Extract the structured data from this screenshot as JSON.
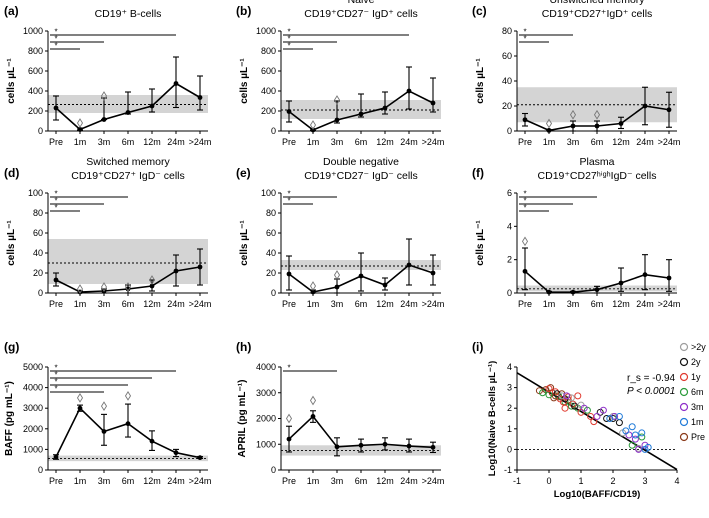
{
  "figure_title": "B-cell subsets, BAFF and APRIL over time",
  "chart_data": [
    {
      "id": "a",
      "label": "(a)",
      "type": "line",
      "title_lines": [
        "CD19⁺ B-cells"
      ],
      "ylabel": "cells µL⁻¹",
      "categories": [
        "Pre",
        "1m",
        "3m",
        "6m",
        "12m",
        "24m",
        ">24m"
      ],
      "ylim": [
        0,
        1000
      ],
      "yticks": [
        0,
        200,
        400,
        600,
        800,
        1000
      ],
      "values": [
        230,
        15,
        115,
        185,
        250,
        475,
        335
      ],
      "err_low": [
        110,
        10,
        115,
        170,
        190,
        235,
        210
      ],
      "err_high": [
        350,
        30,
        330,
        390,
        420,
        740,
        550
      ],
      "ref_band": [
        180,
        360
      ],
      "ref_line": 265,
      "diamonds": [
        {
          "x": "1m",
          "y": 80
        },
        {
          "x": "3m",
          "y": 350
        }
      ],
      "sig_bars": [
        {
          "to": "24m",
          "label": "*"
        },
        {
          "to": "3m",
          "label": "*"
        },
        {
          "to": "1m",
          "label": "*"
        }
      ]
    },
    {
      "id": "b",
      "label": "(b)",
      "type": "line",
      "title_lines": [
        "Naive",
        "CD19⁺CD27⁻ IgD⁺ cells"
      ],
      "ylabel": "cells µL⁻¹",
      "categories": [
        "Pre",
        "1m",
        "3m",
        "6m",
        "12m",
        "24m",
        ">24m"
      ],
      "ylim": [
        0,
        1000
      ],
      "yticks": [
        0,
        200,
        400,
        600,
        800,
        1000
      ],
      "values": [
        195,
        10,
        110,
        170,
        230,
        400,
        280
      ],
      "err_low": [
        90,
        5,
        80,
        140,
        170,
        220,
        190
      ],
      "err_high": [
        300,
        20,
        300,
        370,
        390,
        640,
        530
      ],
      "ref_band": [
        120,
        310
      ],
      "ref_line": 210,
      "diamonds": [
        {
          "x": "1m",
          "y": 60
        },
        {
          "x": "3m",
          "y": 310
        }
      ],
      "sig_bars": [
        {
          "to": "24m",
          "label": "*"
        },
        {
          "to": "3m",
          "label": "*"
        },
        {
          "to": "1m",
          "label": "*"
        }
      ]
    },
    {
      "id": "c",
      "label": "(c)",
      "type": "line",
      "title_lines": [
        "Unswitched memory",
        "CD19⁺CD27⁺IgD⁺ cells"
      ],
      "ylabel": "cells µL⁻¹",
      "categories": [
        "Pre",
        "1m",
        "3m",
        "6m",
        "12m",
        "24m",
        ">24m"
      ],
      "ylim": [
        0,
        80
      ],
      "yticks": [
        0,
        20,
        40,
        60,
        80
      ],
      "values": [
        9,
        0.5,
        4,
        4,
        6,
        20,
        17
      ],
      "err_low": [
        4,
        0,
        0,
        0,
        2,
        5,
        3
      ],
      "err_high": [
        14,
        1,
        8,
        8,
        11,
        35,
        31
      ],
      "ref_band": [
        7,
        35
      ],
      "ref_line": 21,
      "diamonds": [
        {
          "x": "1m",
          "y": 6
        },
        {
          "x": "3m",
          "y": 13
        },
        {
          "x": "6m",
          "y": 13
        }
      ],
      "sig_bars": [
        {
          "to": "3m",
          "label": "*"
        },
        {
          "to": "1m",
          "label": "*"
        }
      ]
    },
    {
      "id": "d",
      "label": "(d)",
      "type": "line",
      "title_lines": [
        "Switched memory",
        "CD19⁺CD27⁺ IgD⁻ cells"
      ],
      "ylabel": "cells µL⁻¹",
      "categories": [
        "Pre",
        "1m",
        "3m",
        "6m",
        "12m",
        "24m",
        ">24m"
      ],
      "ylim": [
        0,
        100
      ],
      "yticks": [
        0,
        20,
        40,
        60,
        80,
        100
      ],
      "values": [
        13,
        1,
        2,
        4,
        7,
        22,
        26
      ],
      "err_low": [
        7,
        0,
        0,
        0,
        2,
        7,
        8
      ],
      "err_high": [
        20,
        2,
        4,
        8,
        13,
        38,
        44
      ],
      "ref_band": [
        9,
        54
      ],
      "ref_line": 30,
      "diamonds": [
        {
          "x": "1m",
          "y": 4
        },
        {
          "x": "3m",
          "y": 6
        },
        {
          "x": "6m",
          "y": 6
        },
        {
          "x": "12m",
          "y": 13
        }
      ],
      "sig_bars": [
        {
          "to": "6m",
          "label": "*"
        },
        {
          "to": "3m",
          "label": "*"
        },
        {
          "to": "1m",
          "label": "*"
        }
      ]
    },
    {
      "id": "e",
      "label": "(e)",
      "type": "line",
      "title_lines": [
        "Double negative",
        "CD19⁺CD27⁻ IgD⁻ cells"
      ],
      "ylabel": "cells µL⁻¹",
      "categories": [
        "Pre",
        "1m",
        "3m",
        "6m",
        "12m",
        "24m",
        ">24m"
      ],
      "ylim": [
        0,
        100
      ],
      "yticks": [
        0,
        20,
        40,
        60,
        80,
        100
      ],
      "values": [
        19,
        1,
        6,
        17,
        8,
        28,
        20
      ],
      "err_low": [
        3,
        0,
        0,
        2,
        3,
        8,
        8
      ],
      "err_high": [
        37,
        3,
        14,
        40,
        15,
        54,
        38
      ],
      "ref_band": [
        23,
        33
      ],
      "ref_line": 27,
      "diamonds": [
        {
          "x": "1m",
          "y": 7
        },
        {
          "x": "3m",
          "y": 18
        }
      ],
      "sig_bars": [
        {
          "to": "3m",
          "label": "*"
        },
        {
          "to": "1m",
          "label": "*"
        }
      ]
    },
    {
      "id": "f",
      "label": "(f)",
      "type": "line",
      "title_lines": [
        "Plasma",
        "CD19⁺CD27ʰⁱᵍʰIgD⁻ cells"
      ],
      "ylabel": "cells µL⁻¹",
      "categories": [
        "Pre",
        "1m",
        "3m",
        "6m",
        "12m",
        "24m",
        ">24m"
      ],
      "ylim": [
        0,
        6
      ],
      "yticks": [
        0,
        2,
        4,
        6
      ],
      "values": [
        1.3,
        0.05,
        0.05,
        0.2,
        0.6,
        1.1,
        0.9
      ],
      "err_low": [
        0.2,
        0,
        0,
        0,
        0.1,
        0.2,
        0.1
      ],
      "err_high": [
        2.7,
        0.1,
        0.1,
        0.4,
        1.5,
        2.3,
        2.0
      ],
      "ref_band": [
        0.1,
        0.45
      ],
      "ref_line": 0.25,
      "diamonds": [
        {
          "x": "Pre",
          "y": 3.1
        }
      ],
      "sig_bars": [
        {
          "to": "6m",
          "label": "*"
        },
        {
          "to": "3m",
          "label": "*"
        },
        {
          "to": "1m",
          "label": "*"
        }
      ]
    },
    {
      "id": "g",
      "label": "(g)",
      "type": "line",
      "title_lines": [],
      "ylabel": "BAFF (pg mL⁻¹)",
      "categories": [
        "Pre",
        "1m",
        "3m",
        "6m",
        "12m",
        "24m",
        ">24m"
      ],
      "ylim": [
        0,
        5000
      ],
      "yticks": [
        0,
        1000,
        2000,
        3000,
        4000,
        5000
      ],
      "values": [
        630,
        3000,
        1870,
        2250,
        1400,
        840,
        600
      ],
      "err_low": [
        520,
        2850,
        1200,
        1600,
        950,
        650,
        560
      ],
      "err_high": [
        740,
        3150,
        2700,
        3200,
        1900,
        1000,
        650
      ],
      "ref_band": [
        430,
        700
      ],
      "ref_line": 560,
      "diamonds": [
        {
          "x": "1m",
          "y": 3500
        },
        {
          "x": "3m",
          "y": 3100
        },
        {
          "x": "6m",
          "y": 3600
        }
      ],
      "sig_bars": [
        {
          "to": "24m",
          "label": "*"
        },
        {
          "to": "12m",
          "label": "*"
        },
        {
          "to": "6m",
          "label": "*"
        },
        {
          "to": "3m",
          "label": "*"
        }
      ]
    },
    {
      "id": "h",
      "label": "(h)",
      "type": "line",
      "title_lines": [],
      "ylabel": "APRIL (pg mL⁻¹)",
      "categories": [
        "Pre",
        "1m",
        "3m",
        "6m",
        "12m",
        "24m",
        ">24m"
      ],
      "ylim": [
        0,
        4000
      ],
      "yticks": [
        0,
        1000,
        2000,
        3000,
        4000
      ],
      "values": [
        1200,
        2080,
        900,
        960,
        1000,
        930,
        880
      ],
      "err_low": [
        700,
        1850,
        550,
        700,
        780,
        700,
        680
      ],
      "err_high": [
        1700,
        2300,
        1250,
        1200,
        1250,
        1200,
        1080
      ],
      "ref_band": [
        560,
        960
      ],
      "ref_line": 760,
      "diamonds": [
        {
          "x": "Pre",
          "y": 2000
        },
        {
          "x": "1m",
          "y": 2700
        }
      ],
      "sig_bars": [
        {
          "to": "3m",
          "label": "*"
        }
      ]
    },
    {
      "id": "i",
      "label": "(i)",
      "type": "scatter",
      "xlabel": "Log10(BAFF/CD19)",
      "ylabel": "Log10(Naive B-cells µL⁻¹)",
      "xlim": [
        -1,
        4
      ],
      "ylim": [
        -1,
        4
      ],
      "xticks": [
        -1,
        0,
        1,
        2,
        3,
        4
      ],
      "yticks": [
        -1,
        0,
        1,
        2,
        3,
        4
      ],
      "stat_line1": "r_s = -0.94",
      "stat_line2": "P < 0.0001",
      "fit": {
        "slope": -0.94,
        "intercept": 2.78
      },
      "ref_y": 0,
      "legend": [
        {
          "name": ">2y",
          "color": "#9e9e9e"
        },
        {
          "name": "2y",
          "color": "#111111"
        },
        {
          "name": "1y",
          "color": "#e03a2f"
        },
        {
          "name": "6m",
          "color": "#2a9a3a"
        },
        {
          "name": "3m",
          "color": "#8e2fc9"
        },
        {
          "name": "1m",
          "color": "#1f7ad8"
        },
        {
          "name": "Pre",
          "color": "#8a3a1a"
        }
      ],
      "series": [
        {
          "name": "Pre",
          "points": [
            [
              -0.3,
              2.85
            ],
            [
              -0.1,
              2.9
            ],
            [
              0.1,
              2.75
            ],
            [
              0.2,
              2.6
            ],
            [
              0.3,
              2.55
            ],
            [
              0.05,
              3.0
            ],
            [
              0.4,
              2.7
            ],
            [
              0.6,
              2.4
            ],
            [
              0.15,
              2.5
            ]
          ]
        },
        {
          "name": "6m",
          "points": [
            [
              -0.2,
              2.75
            ],
            [
              0.0,
              2.65
            ],
            [
              0.3,
              2.6
            ],
            [
              0.5,
              2.3
            ],
            [
              0.7,
              2.1
            ],
            [
              0.9,
              2.0
            ],
            [
              1.2,
              1.9
            ],
            [
              2.9,
              0.6
            ],
            [
              2.6,
              0.2
            ]
          ]
        },
        {
          "name": "1y",
          "points": [
            [
              0.0,
              2.95
            ],
            [
              0.2,
              2.8
            ],
            [
              0.35,
              2.45
            ],
            [
              0.45,
              2.3
            ],
            [
              0.6,
              2.55
            ],
            [
              0.75,
              2.2
            ],
            [
              1.0,
              1.8
            ],
            [
              1.3,
              1.6
            ],
            [
              1.4,
              1.35
            ],
            [
              0.9,
              2.6
            ],
            [
              0.5,
              2.0
            ]
          ]
        },
        {
          "name": "2y",
          "points": [
            [
              0.25,
              2.7
            ],
            [
              0.5,
              2.45
            ],
            [
              0.8,
              2.1
            ],
            [
              1.6,
              1.8
            ],
            [
              1.8,
              1.5
            ],
            [
              2.0,
              1.5
            ],
            [
              2.2,
              1.3
            ]
          ]
        },
        {
          "name": ">2y",
          "points": [
            [
              0.4,
              2.6
            ],
            [
              0.7,
              2.5
            ],
            [
              1.0,
              2.15
            ],
            [
              2.0,
              1.6
            ],
            [
              2.3,
              0.8
            ],
            [
              2.8,
              0.05
            ]
          ]
        },
        {
          "name": "3m",
          "points": [
            [
              0.55,
              2.6
            ],
            [
              1.1,
              2.0
            ],
            [
              1.5,
              1.6
            ],
            [
              1.7,
              1.9
            ],
            [
              2.05,
              1.6
            ],
            [
              2.5,
              0.7
            ],
            [
              2.7,
              0.5
            ],
            [
              2.8,
              0.0
            ],
            [
              3.0,
              0.2
            ]
          ]
        },
        {
          "name": "1m",
          "points": [
            [
              1.9,
              1.5
            ],
            [
              2.2,
              1.6
            ],
            [
              2.4,
              0.9
            ],
            [
              2.7,
              0.7
            ],
            [
              2.9,
              0.8
            ],
            [
              3.0,
              0.0
            ],
            [
              3.1,
              0.1
            ],
            [
              2.6,
              1.1
            ]
          ]
        }
      ]
    }
  ]
}
